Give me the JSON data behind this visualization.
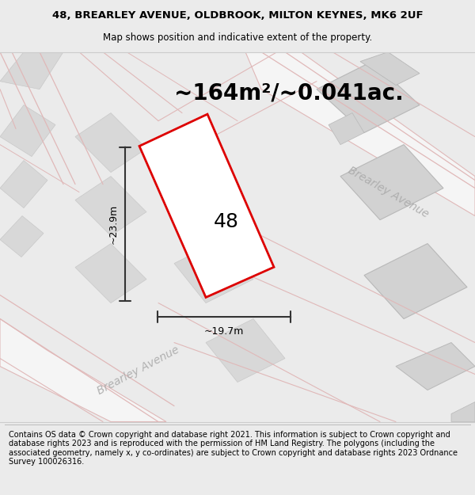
{
  "title_line1": "48, BREARLEY AVENUE, OLDBROOK, MILTON KEYNES, MK6 2UF",
  "title_line2": "Map shows position and indicative extent of the property.",
  "area_text": "~164m²/~0.041ac.",
  "label_48": "48",
  "dim_width": "~19.7m",
  "dim_height": "~23.9m",
  "street_label_bottom": "Brearley Avenue",
  "street_label_right": "Brearley Avenue",
  "footer_text": "Contains OS data © Crown copyright and database right 2021. This information is subject to Crown copyright and database rights 2023 and is reproduced with the permission of HM Land Registry. The polygons (including the associated geometry, namely x, y co-ordinates) are subject to Crown copyright and database rights 2023 Ordnance Survey 100026316.",
  "bg_color": "#ebebeb",
  "map_bg": "#ebebeb",
  "plot_outline_color": "#dd0000",
  "road_fill": "#f5f5f5",
  "road_stroke": "#e0b8b8",
  "building_fill": "#d8d8d8",
  "building_stroke": "#c8c8c8",
  "dim_line_color": "#333333",
  "title_fontsize": 9.5,
  "subtitle_fontsize": 8.5,
  "area_fontsize": 20,
  "label_fontsize": 18,
  "dim_fontsize": 9,
  "street_fontsize": 10,
  "footer_fontsize": 7.0
}
